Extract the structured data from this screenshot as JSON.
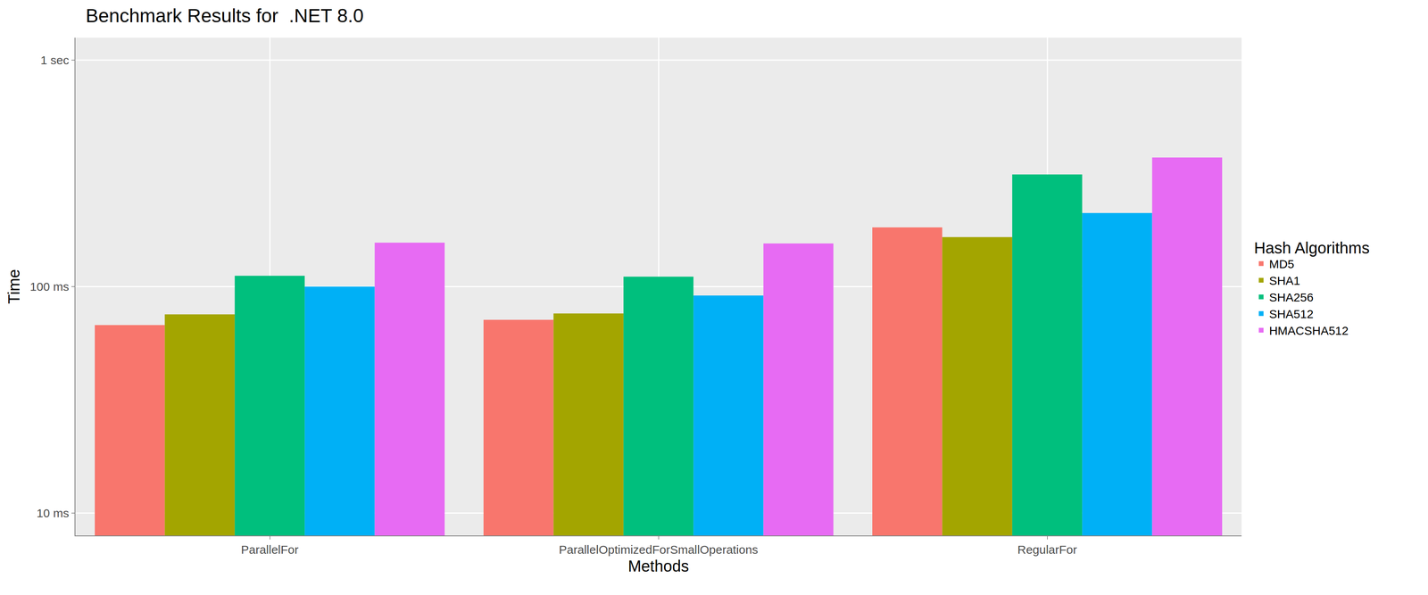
{
  "chart_data": {
    "type": "bar",
    "title": "Benchmark Results for  .NET 8.0",
    "x_label": "Methods",
    "y_label": "Time",
    "legend_title": "Hash Algorithms",
    "categories": [
      "ParallelFor",
      "ParallelOptimizedForSmallOperations",
      "RegularFor"
    ],
    "series": [
      {
        "name": "MD5",
        "color": "#F8766D",
        "values": [
          67.6,
          71.3,
          182.5
        ]
      },
      {
        "name": "SHA1",
        "color": "#A3A500",
        "values": [
          75.4,
          76.1,
          165.3
        ]
      },
      {
        "name": "SHA256",
        "color": "#00BF7D",
        "values": [
          111.6,
          110.6,
          312.7
        ]
      },
      {
        "name": "SHA512",
        "color": "#00B0F6",
        "values": [
          100,
          91.3,
          211.3
        ]
      },
      {
        "name": "HMACSHA512",
        "color": "#E76BF3",
        "values": [
          156.3,
          155.0,
          371.5
        ]
      }
    ],
    "ylim": [
      7.96,
      1256
    ],
    "yticks": [
      {
        "value": 10,
        "label": "10 ms"
      },
      {
        "value": 100,
        "label": "100 ms"
      },
      {
        "value": 1000,
        "label": "1 sec"
      }
    ],
    "log": "y",
    "grid": true,
    "legend": "right"
  }
}
